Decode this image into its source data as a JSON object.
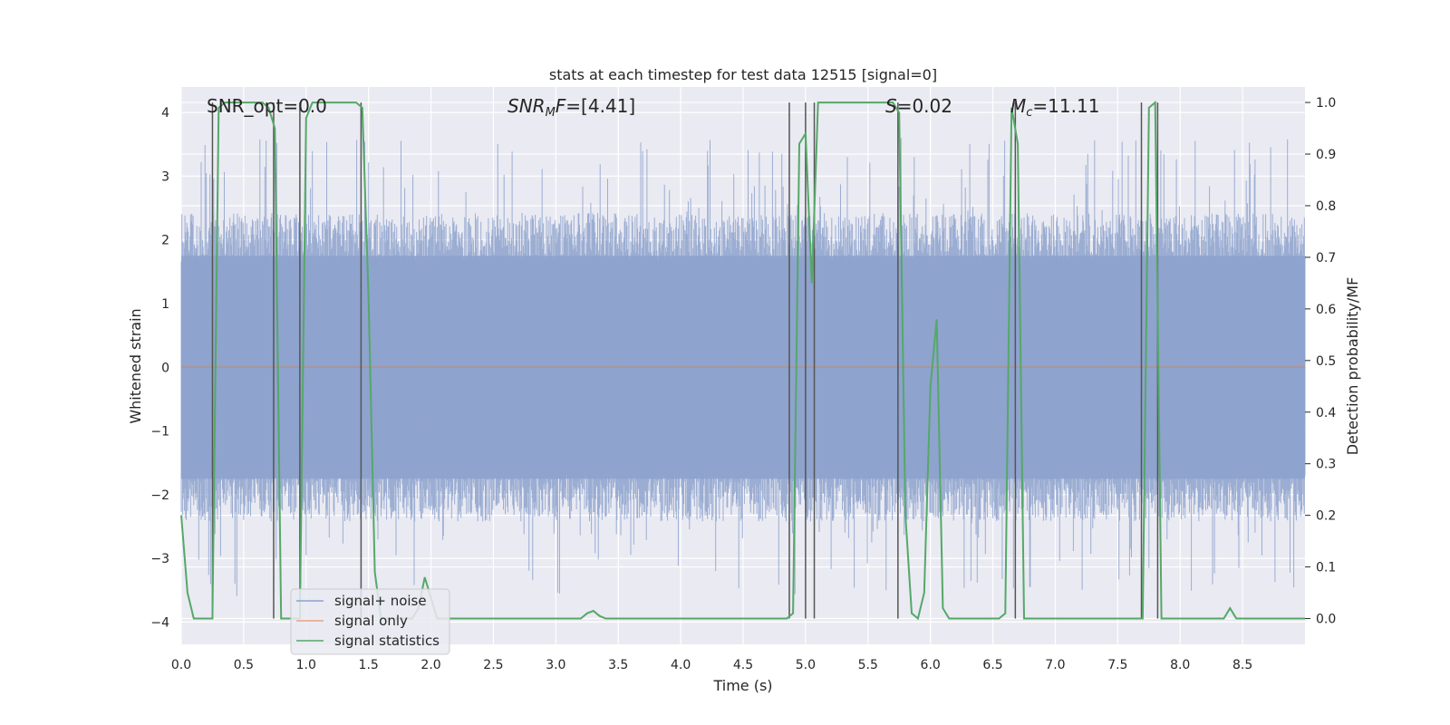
{
  "chart_data": {
    "type": "line",
    "title": "stats at each timestep for test data 12515 [signal=0]",
    "xlabel": "Time (s)",
    "ylabel": "Whitened strain",
    "y2label": "Detection probability/MF",
    "xlim": [
      0.0,
      9.0
    ],
    "ylim": [
      -4.35,
      4.4
    ],
    "y2lim": [
      -0.05,
      1.03
    ],
    "x_ticks": [
      "0.0",
      "0.5",
      "1.0",
      "1.5",
      "2.0",
      "2.5",
      "3.0",
      "3.5",
      "4.0",
      "4.5",
      "5.0",
      "5.5",
      "6.0",
      "6.5",
      "7.0",
      "7.5",
      "8.0",
      "8.5"
    ],
    "y_ticks": [
      "4",
      "3",
      "2",
      "1",
      "0",
      "−1",
      "−2",
      "−3",
      "−4"
    ],
    "y2_ticks": [
      "1.0",
      "0.9",
      "0.8",
      "0.7",
      "0.6",
      "0.5",
      "0.4",
      "0.3",
      "0.2",
      "0.1",
      "0.0"
    ],
    "annotations": {
      "snr_opt": "SNR_opt=0.0",
      "snr_mf_prefix": "SNR",
      "snr_mf_sub": "M",
      "snr_mf_mid": "F",
      "snr_mf_value": "=[4.41]",
      "s_symbol": "S",
      "s_value": "=0.02",
      "mc_symbol": "M",
      "mc_sub": "c",
      "mc_value": "=11.11"
    },
    "legend": {
      "position": "lower-left",
      "entries": [
        {
          "label": "signal+ noise",
          "color": "#8da2cc"
        },
        {
          "label": "signal only",
          "color": "#e8a484"
        },
        {
          "label": "signal statistics",
          "color": "#55a868"
        }
      ]
    },
    "series": [
      {
        "name": "signal+ noise",
        "type": "noise",
        "amplitude_typical": 2.2,
        "amplitude_peak": 3.6,
        "color": "#8da2cc"
      },
      {
        "name": "signal only",
        "values_constant": 0.0,
        "color": "#dd8452"
      },
      {
        "name": "signal statistics",
        "axis": "right",
        "color": "#55a868",
        "x": [
          0.0,
          0.05,
          0.1,
          0.15,
          0.2,
          0.25,
          0.3,
          0.35,
          0.4,
          0.45,
          0.5,
          0.55,
          0.6,
          0.65,
          0.7,
          0.75,
          0.8,
          0.85,
          0.9,
          0.95,
          1.0,
          1.05,
          1.1,
          1.15,
          1.2,
          1.3,
          1.4,
          1.45,
          1.5,
          1.55,
          1.6,
          1.7,
          1.8,
          1.85,
          1.9,
          1.95,
          2.0,
          2.05,
          2.1,
          2.5,
          3.0,
          3.2,
          3.25,
          3.3,
          3.35,
          3.4,
          3.5,
          4.0,
          4.5,
          4.8,
          4.85,
          4.9,
          4.95,
          5.0,
          5.05,
          5.1,
          5.15,
          5.5,
          5.65,
          5.7,
          5.75,
          5.8,
          5.85,
          5.9,
          5.95,
          6.0,
          6.05,
          6.1,
          6.15,
          6.2,
          6.5,
          6.55,
          6.6,
          6.65,
          6.7,
          6.75,
          7.0,
          7.5,
          7.65,
          7.7,
          7.75,
          7.8,
          7.85,
          7.9,
          7.95,
          8.0,
          8.3,
          8.35,
          8.4,
          8.45,
          8.5,
          9.0
        ],
        "values": [
          0.2,
          0.05,
          0.0,
          0.0,
          0.0,
          0.0,
          0.99,
          1.0,
          1.0,
          1.0,
          1.0,
          1.0,
          1.0,
          1.0,
          0.99,
          0.95,
          0.0,
          0.0,
          0.0,
          0.0,
          0.97,
          1.0,
          1.0,
          1.0,
          1.0,
          1.0,
          1.0,
          0.99,
          0.62,
          0.09,
          0.0,
          0.0,
          0.0,
          0.0,
          0.02,
          0.08,
          0.04,
          0.0,
          0.0,
          0.0,
          0.0,
          0.0,
          0.01,
          0.015,
          0.005,
          0.0,
          0.0,
          0.0,
          0.0,
          0.0,
          0.0,
          0.01,
          0.92,
          0.94,
          0.65,
          1.0,
          1.0,
          1.0,
          1.0,
          1.0,
          0.98,
          0.2,
          0.01,
          0.0,
          0.05,
          0.45,
          0.58,
          0.02,
          0.0,
          0.0,
          0.0,
          0.0,
          0.01,
          0.99,
          0.92,
          0.0,
          0.0,
          0.0,
          0.0,
          0.0,
          0.99,
          1.0,
          0.0,
          0.0,
          0.0,
          0.0,
          0.0,
          0.0,
          0.02,
          0.0,
          0.0,
          0.0
        ]
      }
    ],
    "vertical_markers_s": [
      0.25,
      0.74,
      0.95,
      1.44,
      4.87,
      5.0,
      5.07,
      5.74,
      6.68,
      7.69,
      7.82
    ]
  }
}
